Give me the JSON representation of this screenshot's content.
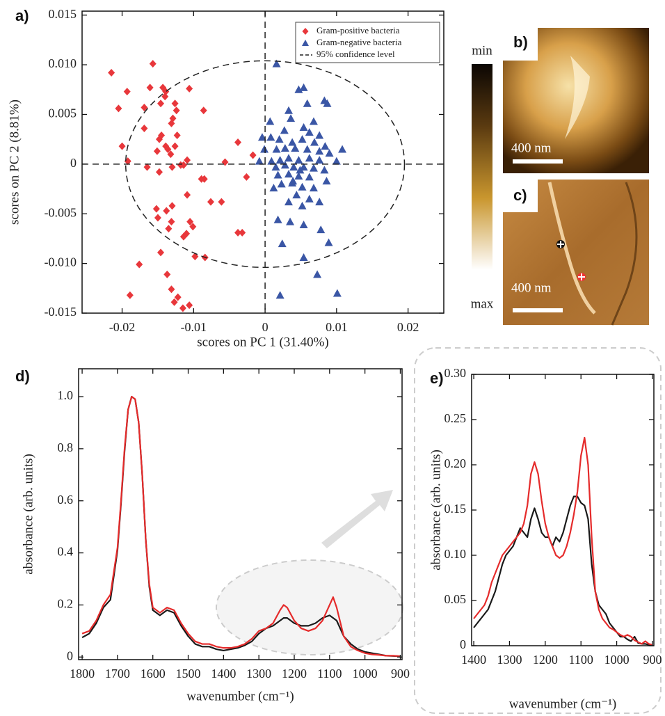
{
  "chart_data": [
    {
      "type": "scatter",
      "panel_label": "a)",
      "x_label": "scores on PC 1 (31.40%)",
      "y_label": "scores on PC 2 (8.81%)",
      "xlim": [
        -0.0256,
        0.025
      ],
      "ylim": [
        -0.015,
        0.0154
      ],
      "xticks": [
        -0.02,
        -0.01,
        0,
        0.01,
        0.02
      ],
      "yticks": [
        0.015,
        {
          "value": 0.01,
          "label": "0.010"
        },
        0.005,
        0,
        -0.005,
        {
          "value": -0.01,
          "label": "-0.010"
        },
        -0.015
      ],
      "legend": "upper right",
      "ellipse": {
        "name": "95% confidence level",
        "cx": 0,
        "cy": 0,
        "rx": 0.0195,
        "ry": 0.0104
      },
      "series": [
        {
          "name": "Gram-positive bacteria",
          "color": "#e8373b",
          "marker": "diamond",
          "x": [
            -0.0215,
            -0.0157,
            -0.0193,
            -0.0143,
            -0.0106,
            -0.0161,
            -0.0139,
            -0.014,
            -0.0169,
            -0.0146,
            -0.0126,
            -0.0124,
            -0.0205,
            -0.0086,
            -0.0129,
            -0.0131,
            -0.0169,
            -0.0145,
            -0.0123,
            -0.0148,
            -0.02,
            -0.0139,
            -0.0126,
            -0.0136,
            -0.0151,
            -0.0132,
            -0.0114,
            -0.0192,
            -0.0165,
            -0.0118,
            -0.0148,
            -0.013,
            -0.0109,
            -0.0038,
            -0.0017,
            -0.0056,
            -0.0026,
            -0.0085,
            -0.0089,
            -0.0109,
            -0.0076,
            -0.0061,
            -0.0152,
            -0.013,
            -0.0138,
            -0.015,
            -0.0131,
            -0.0105,
            -0.011,
            -0.0135,
            -0.0101,
            -0.0114,
            -0.0038,
            -0.0032,
            -0.0146,
            -0.0098,
            -0.0084,
            -0.0176,
            -0.0137,
            -0.0189,
            -0.0131,
            -0.0127,
            -0.0115,
            -0.0106,
            -0.0122
          ],
          "values": [
            0.0092,
            0.0101,
            0.0073,
            0.0077,
            0.0076,
            0.0077,
            0.0073,
            0.0068,
            0.0057,
            0.0061,
            0.0061,
            0.0054,
            0.0056,
            0.0054,
            0.0046,
            0.0041,
            0.0036,
            0.0029,
            0.0029,
            0.0025,
            0.0018,
            0.0018,
            0.0018,
            0.0015,
            0.0013,
            0.001,
            -0.0001,
            0.0003,
            -0.0003,
            -0.0001,
            -0.0008,
            -0.0003,
            0.0004,
            0.0022,
            0.0009,
            0.0002,
            -0.0013,
            -0.0015,
            -0.0015,
            -0.0031,
            -0.0038,
            -0.0038,
            -0.0045,
            -0.0042,
            -0.0047,
            -0.0054,
            -0.0058,
            -0.0058,
            -0.007,
            -0.0065,
            -0.0063,
            -0.0073,
            -0.0069,
            -0.0069,
            -0.0089,
            -0.0093,
            -0.0094,
            -0.0101,
            -0.0111,
            -0.0132,
            -0.0126,
            -0.0139,
            -0.0145,
            -0.0142,
            -0.0134
          ]
        },
        {
          "name": "Gram-negative bacteria",
          "color": "#3a56a5",
          "marker": "triangle",
          "x": [
            0.0016,
            0.0047,
            0.0054,
            0.0033,
            0.0059,
            0.0083,
            0.0087,
            0.0007,
            0.0036,
            0.0068,
            0.0054,
            0.0027,
            0.0062,
            0.0076,
            -0.0004,
            0.0008,
            0.002,
            0.0038,
            0.0052,
            0.0069,
            0.0084,
            0.0108,
            -0.0001,
            0.0016,
            0.0028,
            0.0042,
            0.0059,
            0.0076,
            0.009,
            -0.0008,
            0.0009,
            0.0021,
            0.0033,
            0.0047,
            0.0062,
            0.0076,
            0.01,
            0.0015,
            0.0028,
            0.004,
            0.0054,
            0.0068,
            0.0083,
            0.0018,
            0.0033,
            0.0047,
            0.0062,
            0.0086,
            0.0023,
            0.0038,
            0.0052,
            0.0068,
            0.0012,
            0.0044,
            0.0062,
            0.0033,
            0.0052,
            0.0076,
            0.0018,
            0.0035,
            0.0054,
            0.0078,
            0.0089,
            0.0054,
            0.0024,
            0.0073,
            0.0021,
            0.0101,
            0.0039,
            0.0049
          ],
          "values": [
            0.0101,
            0.0075,
            0.0077,
            0.0054,
            0.0061,
            0.0064,
            0.0061,
            0.0043,
            0.0046,
            0.0043,
            0.0037,
            0.0034,
            0.0032,
            0.0029,
            0.0027,
            0.0027,
            0.0025,
            0.0022,
            0.0025,
            0.0022,
            0.0018,
            0.0015,
            0.0015,
            0.0015,
            0.0016,
            0.0016,
            0.0015,
            0.0013,
            0.0011,
            0.0003,
            0.0003,
            0.0004,
            0.0006,
            0.0004,
            0.0006,
            0.0004,
            0.0003,
            -0.0003,
            -0.0001,
            -0.0003,
            -0.0003,
            -0.0004,
            -0.0006,
            -0.0011,
            -0.001,
            -0.0012,
            -0.0013,
            -0.0017,
            -0.002,
            -0.0019,
            -0.0023,
            -0.0024,
            -0.0024,
            -0.0031,
            -0.0035,
            -0.0038,
            -0.0042,
            -0.0038,
            -0.0056,
            -0.0058,
            -0.0061,
            -0.0066,
            -0.0079,
            -0.0094,
            -0.008,
            -0.0111,
            -0.0132,
            -0.013,
            -0.0017,
            -0.0006
          ]
        }
      ]
    },
    {
      "type": "line",
      "panel_label": "d)",
      "x_label": "wavenumber (cm⁻¹)",
      "y_label": "absorbance (arb. units)",
      "xlim": [
        1810,
        895
      ],
      "ylim": [
        -0.01,
        1.107
      ],
      "xticks": [
        1800,
        1700,
        1600,
        1500,
        1400,
        1300,
        1200,
        1100,
        1000,
        900
      ],
      "yticks": [
        0,
        0.2,
        0.4,
        0.6,
        0.8,
        {
          "value": 1,
          "label": "1.0"
        }
      ],
      "x": [
        1800,
        1780,
        1760,
        1740,
        1720,
        1700,
        1690,
        1680,
        1670,
        1660,
        1650,
        1640,
        1630,
        1620,
        1610,
        1600,
        1580,
        1560,
        1540,
        1520,
        1500,
        1480,
        1460,
        1440,
        1420,
        1400,
        1380,
        1360,
        1340,
        1320,
        1300,
        1280,
        1260,
        1240,
        1230,
        1220,
        1200,
        1180,
        1160,
        1140,
        1120,
        1100,
        1090,
        1080,
        1060,
        1040,
        1020,
        1000,
        980,
        960,
        940,
        920,
        900
      ],
      "series": [
        {
          "color": "#1a1a1a",
          "values": [
            0.075,
            0.09,
            0.13,
            0.19,
            0.22,
            0.41,
            0.59,
            0.79,
            0.95,
            1.0,
            0.99,
            0.9,
            0.7,
            0.45,
            0.27,
            0.18,
            0.16,
            0.18,
            0.17,
            0.12,
            0.08,
            0.05,
            0.04,
            0.04,
            0.03,
            0.025,
            0.03,
            0.035,
            0.045,
            0.06,
            0.09,
            0.11,
            0.12,
            0.14,
            0.15,
            0.15,
            0.13,
            0.12,
            0.12,
            0.13,
            0.15,
            0.16,
            0.15,
            0.14,
            0.08,
            0.05,
            0.03,
            0.02,
            0.015,
            0.01,
            0.005,
            0.004,
            0.003
          ]
        },
        {
          "color": "#e52b2b",
          "values": [
            0.09,
            0.1,
            0.14,
            0.2,
            0.24,
            0.42,
            0.6,
            0.8,
            0.95,
            1.0,
            0.99,
            0.9,
            0.7,
            0.45,
            0.28,
            0.19,
            0.17,
            0.19,
            0.18,
            0.13,
            0.09,
            0.06,
            0.05,
            0.05,
            0.04,
            0.035,
            0.035,
            0.04,
            0.05,
            0.07,
            0.1,
            0.11,
            0.13,
            0.18,
            0.2,
            0.19,
            0.14,
            0.11,
            0.1,
            0.11,
            0.14,
            0.2,
            0.23,
            0.19,
            0.08,
            0.04,
            0.025,
            0.015,
            0.01,
            0.008,
            0.005,
            0.005,
            0.003
          ]
        }
      ]
    },
    {
      "type": "line",
      "panel_label": "e)",
      "x_label": "wavenumber (cm⁻¹)",
      "y_label": "absorbance (arb. units)",
      "xlim": [
        1406,
        896
      ],
      "ylim": [
        0,
        0.3
      ],
      "xticks": [
        1400,
        1300,
        1200,
        1100,
        1000,
        900
      ],
      "yticks": [
        0,
        0.05,
        {
          "value": 0.1,
          "label": "0.10"
        },
        0.15,
        {
          "value": 0.2,
          "label": "0.20"
        },
        0.25,
        {
          "value": 0.3,
          "label": "0.30"
        }
      ],
      "x": [
        1400,
        1390,
        1380,
        1370,
        1360,
        1350,
        1340,
        1330,
        1320,
        1310,
        1300,
        1290,
        1280,
        1270,
        1260,
        1250,
        1240,
        1230,
        1220,
        1210,
        1200,
        1190,
        1180,
        1170,
        1160,
        1150,
        1140,
        1130,
        1120,
        1110,
        1100,
        1090,
        1080,
        1070,
        1060,
        1050,
        1040,
        1030,
        1020,
        1010,
        1000,
        990,
        980,
        970,
        960,
        950,
        940,
        930,
        920,
        910,
        900
      ],
      "series": [
        {
          "color": "#1a1a1a",
          "values": [
            0.02,
            0.025,
            0.03,
            0.035,
            0.04,
            0.05,
            0.06,
            0.075,
            0.09,
            0.1,
            0.105,
            0.11,
            0.12,
            0.13,
            0.125,
            0.12,
            0.14,
            0.152,
            0.14,
            0.125,
            0.12,
            0.12,
            0.11,
            0.12,
            0.115,
            0.125,
            0.14,
            0.155,
            0.165,
            0.165,
            0.158,
            0.155,
            0.14,
            0.09,
            0.06,
            0.045,
            0.04,
            0.035,
            0.025,
            0.02,
            0.015,
            0.01,
            0.01,
            0.007,
            0.005,
            0.01,
            0.003,
            0.002,
            0.002,
            0.001,
            0.001
          ]
        },
        {
          "color": "#e52b2b",
          "values": [
            0.03,
            0.035,
            0.04,
            0.045,
            0.055,
            0.07,
            0.08,
            0.09,
            0.1,
            0.105,
            0.11,
            0.115,
            0.12,
            0.125,
            0.135,
            0.155,
            0.19,
            0.203,
            0.19,
            0.16,
            0.135,
            0.12,
            0.11,
            0.1,
            0.097,
            0.1,
            0.11,
            0.125,
            0.145,
            0.17,
            0.21,
            0.23,
            0.2,
            0.12,
            0.06,
            0.04,
            0.03,
            0.025,
            0.02,
            0.018,
            0.015,
            0.012,
            0.01,
            0.012,
            0.01,
            0.006,
            0.004,
            0.002,
            0.005,
            0.002,
            0.001
          ]
        }
      ]
    }
  ],
  "images": [
    {
      "label": "b)",
      "scale_bar": "400 nm"
    },
    {
      "label": "c)",
      "scale_bar": "400 nm"
    }
  ],
  "colorbar": {
    "min": "min",
    "max": "max"
  }
}
